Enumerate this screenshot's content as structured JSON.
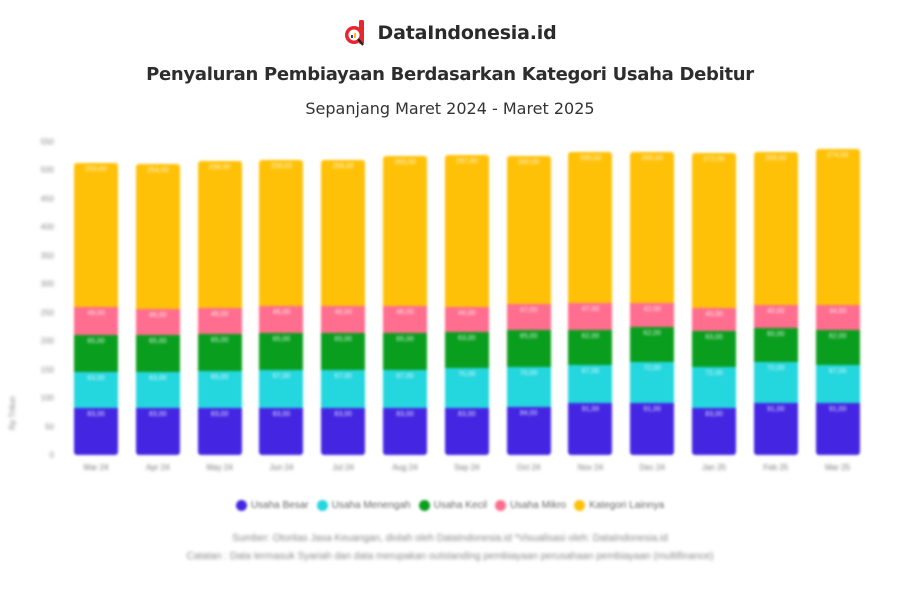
{
  "header": {
    "brand_name": "DataIndonesia.id",
    "title": "Penyaluran Pembiayaan Berdasarkan Kategori Usaha Debitur",
    "subtitle": "Sepanjang Maret 2024 - Maret 2025"
  },
  "colors": {
    "Usaha Besar": "#4426E2",
    "Usaha Menengah": "#24D6DE",
    "Usaha Kecil": "#0A9E1E",
    "Usaha Mikro": "#FF6E8E",
    "Kategori Lainnya": "#FFC107",
    "brand_red": "#E8262E"
  },
  "chart_data": {
    "type": "bar",
    "stacked": true,
    "title": "Penyaluran Pembiayaan Berdasarkan Kategori Usaha Debitur",
    "subtitle": "Sepanjang Maret 2024 - Maret 2025",
    "xlabel": "",
    "ylabel": "Rp Triliun",
    "ylim": [
      0,
      550
    ],
    "yticks": [
      0,
      50,
      100,
      150,
      200,
      250,
      300,
      350,
      400,
      450,
      500,
      550
    ],
    "grid": false,
    "legend_position": "bottom",
    "categories": [
      "Mar 24",
      "Apr 24",
      "May 24",
      "Jun 24",
      "Jul 24",
      "Aug 24",
      "Sep 24",
      "Oct 24",
      "Nov 24",
      "Dec 24",
      "Jan 25",
      "Feb 25",
      "Mar 25"
    ],
    "series": [
      {
        "name": "Usaha Besar",
        "values": [
          83,
          83,
          83,
          83,
          83,
          83,
          83,
          84,
          91,
          91,
          83,
          91,
          91
        ]
      },
      {
        "name": "Usaha Menengah",
        "values": [
          63,
          63,
          65,
          67,
          67,
          67,
          70,
          70,
          67,
          72,
          72,
          72,
          67
        ]
      },
      {
        "name": "Usaha Kecil",
        "values": [
          65,
          65,
          65,
          65,
          65,
          65,
          63,
          65,
          62,
          62,
          63,
          60,
          62
        ]
      },
      {
        "name": "Usaha Mikro",
        "values": [
          49,
          46,
          46,
          46,
          46,
          46,
          44,
          47,
          47,
          42,
          40,
          40,
          44
        ]
      },
      {
        "name": "Kategori Lainnya",
        "values": [
          253,
          254,
          258,
          258,
          258,
          265,
          267,
          260,
          265,
          265,
          272,
          269,
          274
        ]
      }
    ]
  },
  "legend": {
    "items": [
      "Usaha Besar",
      "Usaha Menengah",
      "Usaha Kecil",
      "Usaha Mikro",
      "Kategori Lainnya"
    ]
  },
  "footer": {
    "source": "Sumber: Otoritas Jasa Keuangan, diolah oleh DataIndonesia.id *Visualisasi oleh: DataIndonesia.id",
    "note": "Catatan : Data termasuk Syariah dan data merupakan outstanding pembiayaan perusahaan pembiayaan (multifinance)"
  }
}
